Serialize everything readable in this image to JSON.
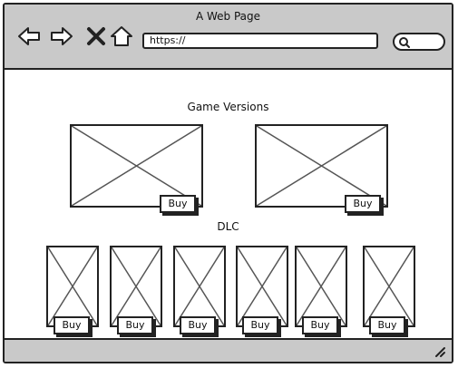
{
  "window": {
    "title": "A Web Page"
  },
  "toolbar": {
    "url_value": "https://",
    "icons": [
      "back-arrow-icon",
      "forward-arrow-icon",
      "close-icon",
      "home-icon",
      "search-icon"
    ]
  },
  "game_versions": {
    "heading": "Game Versions",
    "items": [
      {
        "buy_label": "Buy"
      },
      {
        "buy_label": "Buy"
      }
    ]
  },
  "dlc": {
    "heading": "DLC",
    "items": [
      {
        "buy_label": "Buy"
      },
      {
        "buy_label": "Buy"
      },
      {
        "buy_label": "Buy"
      },
      {
        "buy_label": "Buy"
      },
      {
        "buy_label": "Buy"
      },
      {
        "buy_label": "Buy"
      }
    ]
  }
}
